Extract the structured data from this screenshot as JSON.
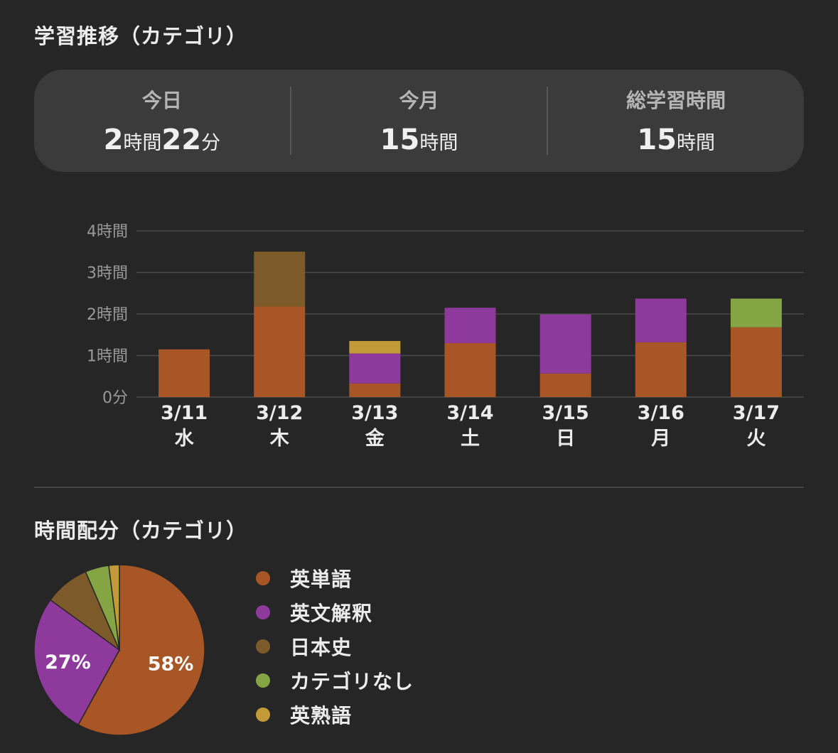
{
  "header": {
    "title": "学習推移（カテゴリ）"
  },
  "summary": {
    "today": {
      "label": "今日",
      "hours_num": "2",
      "hours_unit": "時間",
      "minutes_num": "22",
      "minutes_unit": "分"
    },
    "month": {
      "label": "今月",
      "num": "15",
      "unit": "時間"
    },
    "total": {
      "label": "総学習時間",
      "num": "15",
      "unit": "時間"
    }
  },
  "colors": {
    "英単語": "#a85626",
    "英文解釈": "#8e3a9c",
    "日本史": "#7d5a29",
    "カテゴリなし": "#85a443",
    "英熟語": "#c29a37",
    "grid": "#4a4a4a",
    "axis_text": "#9a9a9a"
  },
  "chart_data": [
    {
      "type": "bar",
      "stacked": true,
      "categories": [
        "3/11",
        "3/12",
        "3/13",
        "3/14",
        "3/15",
        "3/16",
        "3/17"
      ],
      "day_labels": [
        "水",
        "木",
        "金",
        "土",
        "日",
        "月",
        "火"
      ],
      "y_unit": "hours",
      "ylim": [
        0,
        4
      ],
      "y_ticks": [
        "0分",
        "1時間",
        "2時間",
        "3時間",
        "4時間"
      ],
      "grid": true,
      "series": [
        {
          "name": "英単語",
          "values": [
            1.15,
            2.18,
            0.33,
            1.3,
            0.57,
            1.32,
            1.68
          ]
        },
        {
          "name": "英文解釈",
          "values": [
            0,
            0,
            0.72,
            0.85,
            1.42,
            1.05,
            0
          ]
        },
        {
          "name": "日本史",
          "values": [
            0,
            1.32,
            0,
            0,
            0,
            0,
            0
          ]
        },
        {
          "name": "カテゴリなし",
          "values": [
            0,
            0,
            0,
            0,
            0,
            0,
            0.69
          ]
        },
        {
          "name": "英熟語",
          "values": [
            0,
            0,
            0.3,
            0,
            0,
            0,
            0
          ]
        }
      ]
    },
    {
      "type": "pie",
      "title": "時間配分（カテゴリ）",
      "labels": [
        "英単語",
        "英文解釈",
        "日本史",
        "カテゴリなし",
        "英熟語"
      ],
      "values": [
        58,
        27,
        8.5,
        4.5,
        2
      ],
      "data_labels": [
        "58%",
        "27%",
        "",
        "",
        ""
      ]
    }
  ]
}
